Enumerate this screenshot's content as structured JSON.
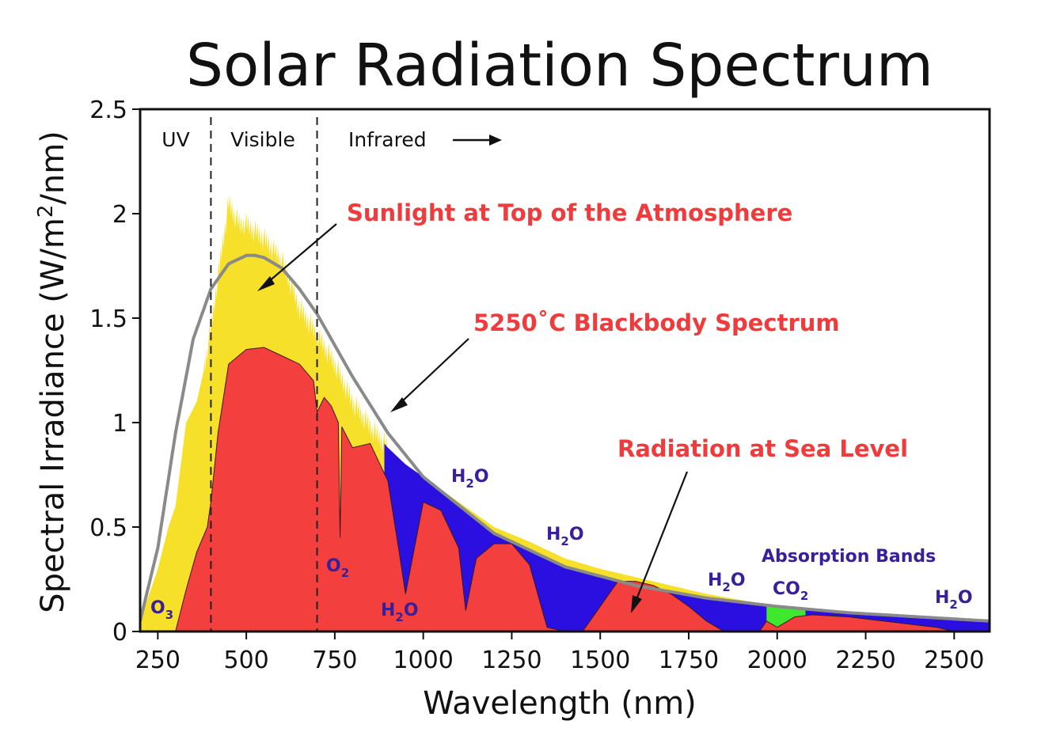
{
  "chart_data": {
    "type": "area",
    "title": "Solar Radiation Spectrum",
    "xlabel": "Wavelength (nm)",
    "ylabel_main": "Spectral Irradiance (W/m",
    "ylabel_sup": "2",
    "ylabel_end": "/nm)",
    "xlim": [
      200,
      2600
    ],
    "ylim": [
      0,
      2.5
    ],
    "xticks": [
      250,
      500,
      750,
      1000,
      1250,
      1500,
      1750,
      2000,
      2250,
      2500
    ],
    "yticks": [
      {
        "value": 0,
        "label": "0"
      },
      {
        "value": 0.5,
        "label": "0.5"
      },
      {
        "value": 1,
        "label": "1"
      },
      {
        "value": 1.5,
        "label": "1.5"
      },
      {
        "value": 2,
        "label": "2"
      },
      {
        "value": 2.5,
        "label": "2.5"
      }
    ],
    "regions": [
      {
        "label": "UV"
      },
      {
        "label": "Visible"
      },
      {
        "label": "Infrared"
      }
    ],
    "region_boundaries": [
      400,
      700
    ],
    "colors": {
      "top_of_atmosphere": "#f7e02a",
      "sea_level": "#f43f3f",
      "absorption_h2o": "#2a0fe0",
      "absorption_co2": "#3fe82f",
      "blackbody": "#8a8a8a",
      "annotation": "#ef3b3b",
      "molecule": "#3a1f9a"
    },
    "series": [
      {
        "name": "Sunlight at Top of the Atmosphere",
        "x": [
          200,
          250,
          280,
          300,
          330,
          360,
          380,
          400,
          420,
          450,
          480,
          500,
          550,
          600,
          650,
          700,
          750,
          800,
          850,
          900,
          950,
          1000,
          1100,
          1200,
          1300,
          1400,
          1500,
          1600,
          1700,
          1800,
          1900,
          2000,
          2100,
          2200,
          2300,
          2400,
          2500,
          2600
        ],
        "y": [
          0.05,
          0.3,
          0.5,
          0.6,
          1.0,
          1.1,
          1.25,
          1.45,
          1.7,
          2.05,
          1.95,
          1.95,
          1.88,
          1.78,
          1.55,
          1.42,
          1.28,
          1.1,
          0.98,
          0.88,
          0.8,
          0.74,
          0.62,
          0.5,
          0.43,
          0.35,
          0.3,
          0.26,
          0.22,
          0.18,
          0.15,
          0.12,
          0.1,
          0.085,
          0.075,
          0.065,
          0.055,
          0.05
        ]
      },
      {
        "name": "5250˚C Blackbody Spectrum",
        "x": [
          200,
          250,
          300,
          350,
          400,
          450,
          500,
          525,
          550,
          600,
          650,
          700,
          800,
          900,
          1000,
          1200,
          1400,
          1600,
          1800,
          2000,
          2200,
          2400,
          2600
        ],
        "y": [
          0.05,
          0.4,
          0.95,
          1.4,
          1.64,
          1.76,
          1.8,
          1.8,
          1.79,
          1.74,
          1.64,
          1.52,
          1.22,
          0.95,
          0.74,
          0.47,
          0.31,
          0.22,
          0.16,
          0.12,
          0.09,
          0.07,
          0.05
        ]
      },
      {
        "name": "Radiation at Sea Level",
        "x": [
          300,
          330,
          360,
          390,
          400,
          420,
          450,
          500,
          550,
          600,
          650,
          690,
          700,
          720,
          740,
          760,
          765,
          770,
          800,
          850,
          900,
          930,
          950,
          1000,
          1050,
          1100,
          1120,
          1150,
          1200,
          1250,
          1300,
          1350,
          1400,
          1450,
          1500,
          1550,
          1600,
          1650,
          1700,
          1750,
          1800,
          1850,
          1950,
          1970,
          2000,
          2050,
          2100,
          2200,
          2300,
          2400,
          2450,
          2500
        ],
        "y": [
          0.0,
          0.2,
          0.38,
          0.5,
          0.62,
          0.95,
          1.28,
          1.35,
          1.36,
          1.32,
          1.28,
          1.2,
          1.05,
          1.12,
          1.08,
          1.0,
          0.45,
          0.98,
          0.88,
          0.9,
          0.72,
          0.4,
          0.18,
          0.62,
          0.58,
          0.4,
          0.1,
          0.35,
          0.42,
          0.42,
          0.32,
          0.02,
          0.0,
          0.0,
          0.12,
          0.24,
          0.24,
          0.22,
          0.18,
          0.12,
          0.05,
          0.0,
          0.0,
          0.05,
          0.02,
          0.07,
          0.08,
          0.07,
          0.05,
          0.03,
          0.02,
          0.0
        ]
      }
    ],
    "annotations": {
      "toa_label": "Sunlight at Top of the Atmosphere",
      "blackbody_label": "5250˚C Blackbody Spectrum",
      "sea_level_label": "Radiation at Sea Level",
      "absorption_label": "Absorption Bands"
    },
    "molecules": [
      {
        "base": "O",
        "sub": "3"
      },
      {
        "base": "O",
        "sub": "2"
      },
      {
        "base": "H",
        "sub": "2",
        "end": "O"
      },
      {
        "base": "H",
        "sub": "2",
        "end": "O"
      },
      {
        "base": "H",
        "sub": "2",
        "end": "O"
      },
      {
        "base": "H",
        "sub": "2",
        "end": "O"
      },
      {
        "base": "CO",
        "sub": "2"
      },
      {
        "base": "H",
        "sub": "2",
        "end": "O"
      }
    ]
  }
}
